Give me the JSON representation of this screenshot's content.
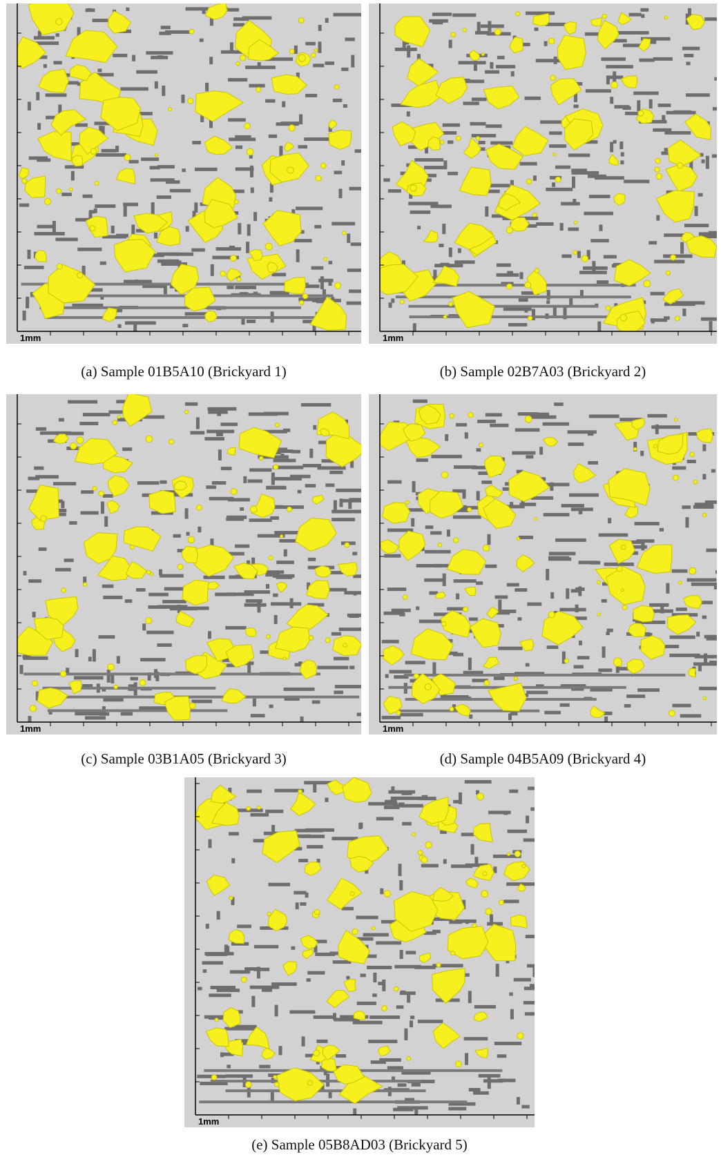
{
  "figure": {
    "panels": [
      {
        "caption": "(a) Sample 01B5A10 (Brickyard 1)",
        "scale_label": "1mm"
      },
      {
        "caption": "(b) Sample 02B7A03 (Brickyard 2)",
        "scale_label": "1mm"
      },
      {
        "caption": "(c) Sample 03B1A05 (Brickyard 3)",
        "scale_label": "1mm"
      },
      {
        "caption": "(d) Sample 04B5A09 (Brickyard 4)",
        "scale_label": "1mm"
      },
      {
        "caption": "(e) Sample 05B8AD03 (Brickyard 5)",
        "scale_label": "1mm"
      }
    ]
  }
}
